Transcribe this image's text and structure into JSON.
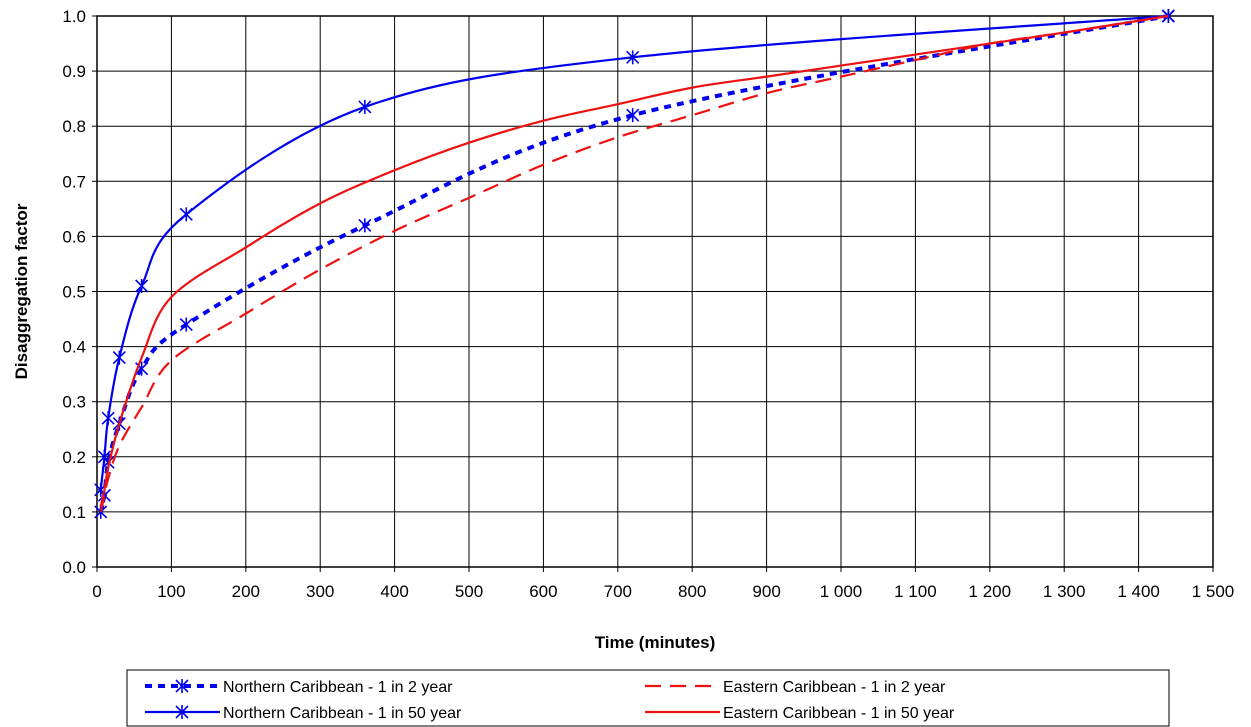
{
  "chart_data": {
    "type": "line",
    "title": "",
    "xlabel": "Time (minutes)",
    "ylabel": "Disaggregation factor",
    "xlim": [
      0,
      1500
    ],
    "ylim": [
      0,
      1.0
    ],
    "x_ticks": [
      0,
      100,
      200,
      300,
      400,
      500,
      600,
      700,
      800,
      900,
      1000,
      1100,
      1200,
      1300,
      1400,
      1500
    ],
    "x_tick_labels": [
      "0",
      "100",
      "200",
      "300",
      "400",
      "500",
      "600",
      "700",
      "800",
      "900",
      "1 000",
      "1 100",
      "1 200",
      "1 300",
      "1 400",
      "1 500"
    ],
    "y_ticks": [
      0.0,
      0.1,
      0.2,
      0.3,
      0.4,
      0.5,
      0.6,
      0.7,
      0.8,
      0.9,
      1.0
    ],
    "y_tick_labels": [
      "0.0",
      "0.1",
      "0.2",
      "0.3",
      "0.4",
      "0.5",
      "0.6",
      "0.7",
      "0.8",
      "0.9",
      "1.0"
    ],
    "grid": true,
    "legend_position": "bottom",
    "series": [
      {
        "name": "Northern Caribbean - 1 in 2 year",
        "color": "#0000ee",
        "style": "dotted-thick",
        "markers": true,
        "x": [
          5,
          10,
          15,
          30,
          60,
          120,
          360,
          720,
          1440
        ],
        "y": [
          0.1,
          0.13,
          0.19,
          0.26,
          0.36,
          0.44,
          0.62,
          0.82,
          1.0
        ]
      },
      {
        "name": "Northern Caribbean - 1 in 50 year",
        "color": "#0000ee",
        "style": "solid",
        "markers": true,
        "x": [
          5,
          10,
          15,
          30,
          60,
          120,
          360,
          720,
          1440
        ],
        "y": [
          0.14,
          0.2,
          0.27,
          0.38,
          0.51,
          0.64,
          0.835,
          0.925,
          1.0
        ]
      },
      {
        "name": "Eastern Caribbean - 1 in 2 year",
        "color": "#ee1111",
        "style": "dashed",
        "markers": false,
        "x": [
          5,
          10,
          15,
          30,
          60,
          100,
          200,
          300,
          400,
          500,
          600,
          700,
          800,
          900,
          1000,
          1100,
          1200,
          1300,
          1440
        ],
        "y": [
          0.1,
          0.13,
          0.16,
          0.22,
          0.29,
          0.375,
          0.46,
          0.54,
          0.61,
          0.67,
          0.73,
          0.78,
          0.82,
          0.86,
          0.89,
          0.92,
          0.95,
          0.97,
          1.0
        ]
      },
      {
        "name": "Eastern Caribbean - 1 in 50 year",
        "color": "#ee1111",
        "style": "solid",
        "markers": false,
        "x": [
          5,
          10,
          15,
          30,
          60,
          100,
          200,
          300,
          400,
          500,
          600,
          700,
          800,
          900,
          1000,
          1100,
          1200,
          1300,
          1440
        ],
        "y": [
          0.11,
          0.14,
          0.18,
          0.26,
          0.38,
          0.49,
          0.58,
          0.66,
          0.72,
          0.77,
          0.81,
          0.84,
          0.87,
          0.89,
          0.91,
          0.93,
          0.95,
          0.97,
          1.0
        ]
      }
    ]
  }
}
